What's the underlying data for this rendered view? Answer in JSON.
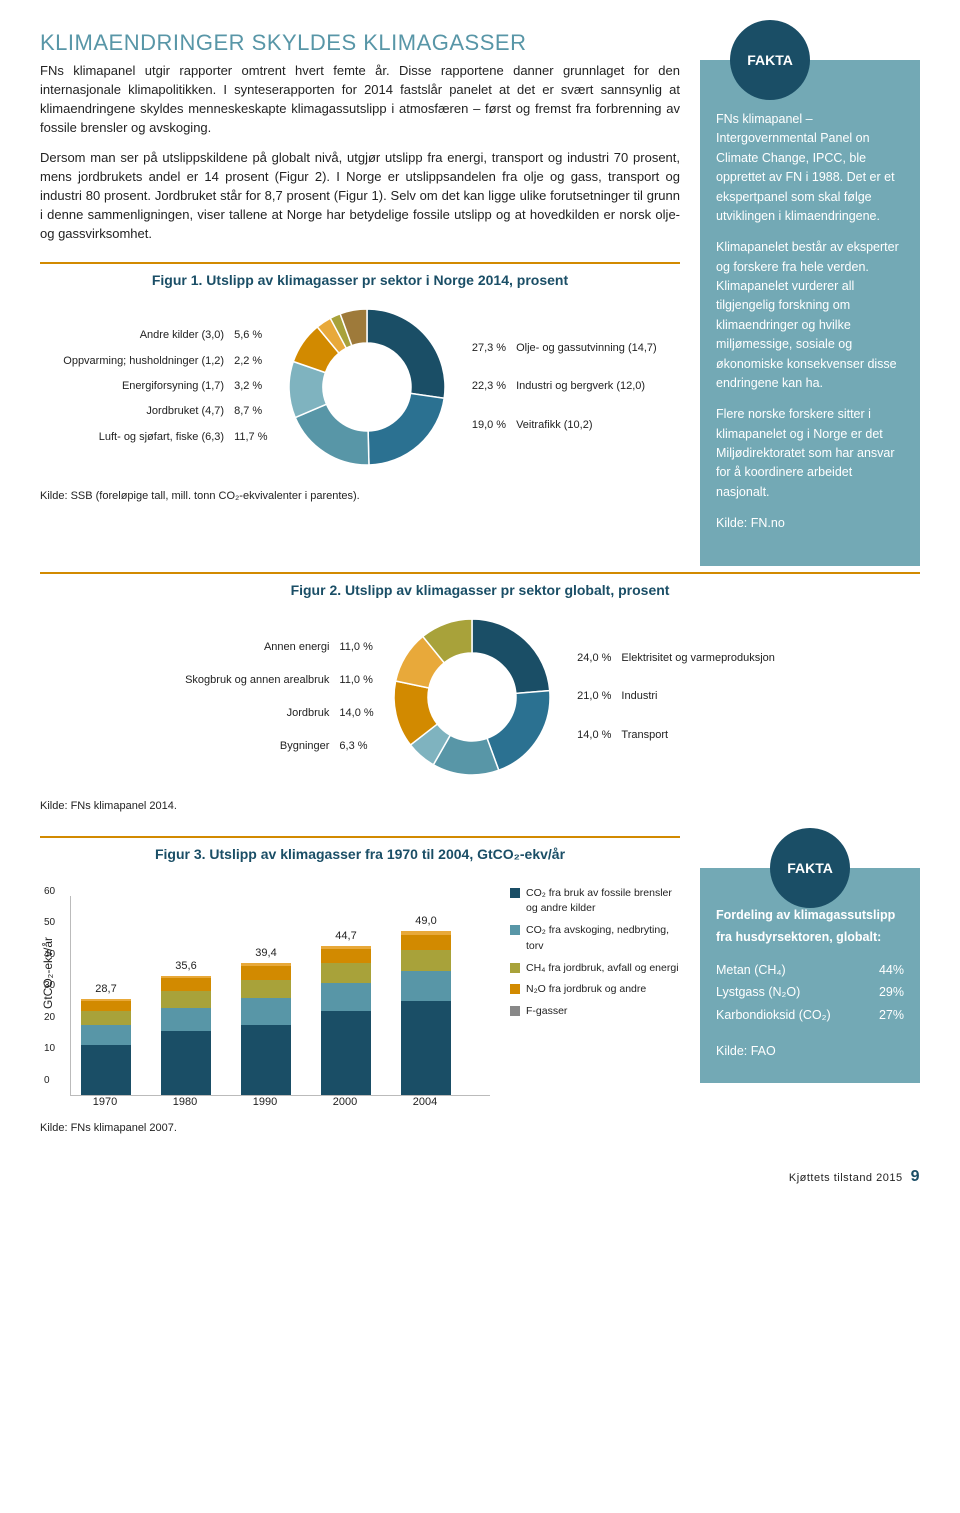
{
  "heading": "KLIMAENDRINGER SKYLDES KLIMAGASSER",
  "para1": "FNs klimapanel utgir rapporter omtrent hvert femte år. Disse rapportene danner grunnlaget for den internasjonale klimapolitikken. I synteserapporten for 2014 fastslår panelet at det er svært sannsynlig at klimaendringene skyldes menneskeskapte klimagassutslipp i atmosfæren – først og fremst fra forbrenning av fossile brensler og avskoging.",
  "para2": "Dersom man ser på utslippskildene på globalt nivå, utgjør utslipp fra energi, transport og industri 70 prosent, mens jordbrukets andel er 14 prosent (Figur 2). I Norge er utslippsandelen fra olje og gass, transport og industri 80 prosent. Jordbruket står for 8,7 prosent (Figur 1). Selv om det kan ligge ulike forutsetninger til grunn i denne sammenligningen, viser tallene at Norge har betydelige fossile utslipp og at hovedkilden er norsk olje- og gassvirksomhet.",
  "fakta1": {
    "badge": "FAKTA",
    "p1": "FNs klimapanel – Intergovernmental Panel on Climate Change, IPCC, ble opprettet av FN i 1988. Det er et ekspertpanel som skal følge utviklingen i klimaendringene.",
    "p2": "Klimapanelet består av eksperter og forskere fra hele verden. Klimapanelet vurderer all tilgjengelig forskning om klimaendringer og hvilke miljømessige, sosiale og økonomiske konsekvenser disse endringene kan ha.",
    "p3": "Flere norske forskere sitter i klimapanelet og i Norge er det Miljødirektoratet som har ansvar for å koordinere arbeidet nasjonalt.",
    "source": "Kilde: FN.no"
  },
  "fig1": {
    "title": "Figur 1. Utslipp av klimagasser pr sektor i Norge 2014, prosent",
    "left": [
      {
        "label": "Andre kilder (3,0)",
        "value": "5,6 %"
      },
      {
        "label": "Oppvarming; husholdninger (1,2)",
        "value": "2,2 %"
      },
      {
        "label": "Energiforsyning (1,7)",
        "value": "3,2 %"
      },
      {
        "label": "Jordbruket (4,7)",
        "value": "8,7 %"
      },
      {
        "label": "Luft- og sjøfart, fiske (6,3)",
        "value": "11,7 %"
      }
    ],
    "right": [
      {
        "value": "27,3 %",
        "label": "Olje- og gassutvinning (14,7)"
      },
      {
        "value": "22,3 %",
        "label": "Industri og bergverk (12,0)"
      },
      {
        "value": "19,0 %",
        "label": "Veitrafikk (10,2)"
      }
    ],
    "colors": [
      "#9e7a3a",
      "#a8a23a",
      "#5b8fa3",
      "#1a4e66",
      "#2b7191",
      "#5896a7",
      "#d28a00",
      "#e8a93a"
    ],
    "source": "Kilde: SSB (foreløpige tall, mill. tonn CO₂-ekvivalenter i parentes)."
  },
  "fig2": {
    "title": "Figur 2. Utslipp av klimagasser pr sektor globalt, prosent",
    "left": [
      {
        "label": "Annen energi",
        "value": "11,0 %"
      },
      {
        "label": "Skogbruk og annen arealbruk",
        "value": "11,0 %"
      },
      {
        "label": "Jordbruk",
        "value": "14,0 %"
      },
      {
        "label": "Bygninger",
        "value": "6,3 %"
      }
    ],
    "right": [
      {
        "value": "24,0 %",
        "label": "Elektrisitet og varmeproduksjon"
      },
      {
        "value": "21,0 %",
        "label": "Industri"
      },
      {
        "value": "14,0 %",
        "label": "Transport"
      }
    ],
    "colors": [
      "#1a4e66",
      "#2b7191",
      "#5896a7",
      "#d28a00",
      "#e8a93a",
      "#a8a23a",
      "#9e7a3a"
    ],
    "source": "Kilde: FNs klimapanel 2014."
  },
  "fig3": {
    "title": "Figur 3. Utslipp av klimagasser fra 1970 til 2004, GtCO₂-ekv/år",
    "ylabel": "GtCO₂-ekv/år",
    "ymax": 60,
    "yticks": [
      "60",
      "50",
      "40",
      "30",
      "20",
      "10",
      "0"
    ],
    "bars": [
      {
        "year": "1970",
        "total": "28,7",
        "segs": [
          15,
          6,
          4,
          3,
          0.7
        ]
      },
      {
        "year": "1980",
        "total": "35,6",
        "segs": [
          19,
          7,
          5,
          4,
          0.6
        ]
      },
      {
        "year": "1990",
        "total": "39,4",
        "segs": [
          21,
          8,
          5.5,
          4,
          0.9
        ]
      },
      {
        "year": "2000",
        "total": "44,7",
        "segs": [
          25,
          8.5,
          6,
          4.2,
          1
        ]
      },
      {
        "year": "2004",
        "total": "49,0",
        "segs": [
          28,
          9,
          6.5,
          4.5,
          1
        ]
      }
    ],
    "seg_colors": [
      "#1a4e66",
      "#5896a7",
      "#a8a23a",
      "#d28a00",
      "#e8a93a"
    ],
    "legend": [
      {
        "color": "#1a4e66",
        "text": "CO₂ fra bruk av fossile brensler og andre kilder"
      },
      {
        "color": "#5896a7",
        "text": "CO₂ fra avskoging, nedbryting, torv"
      },
      {
        "color": "#a8a23a",
        "text": "CH₄ fra jordbruk, avfall og energi"
      },
      {
        "color": "#d28a00",
        "text": "N₂O fra jordbruk og andre"
      },
      {
        "color": "#888",
        "text": "F-gasser"
      }
    ],
    "source": "Kilde: FNs klimapanel 2007."
  },
  "fakta2": {
    "badge": "FAKTA",
    "title": "Fordeling av klimagassutslipp fra husdyrsektoren, globalt:",
    "rows": [
      {
        "label": "Metan (CH₄)",
        "value": "44%"
      },
      {
        "label": "Lystgass (N₂O)",
        "value": "29%"
      },
      {
        "label": "Karbondioksid (CO₂)",
        "value": "27%"
      }
    ],
    "source": "Kilde: FAO"
  },
  "footer": {
    "text": "Kjøttets tilstand 2015",
    "page": "9"
  }
}
